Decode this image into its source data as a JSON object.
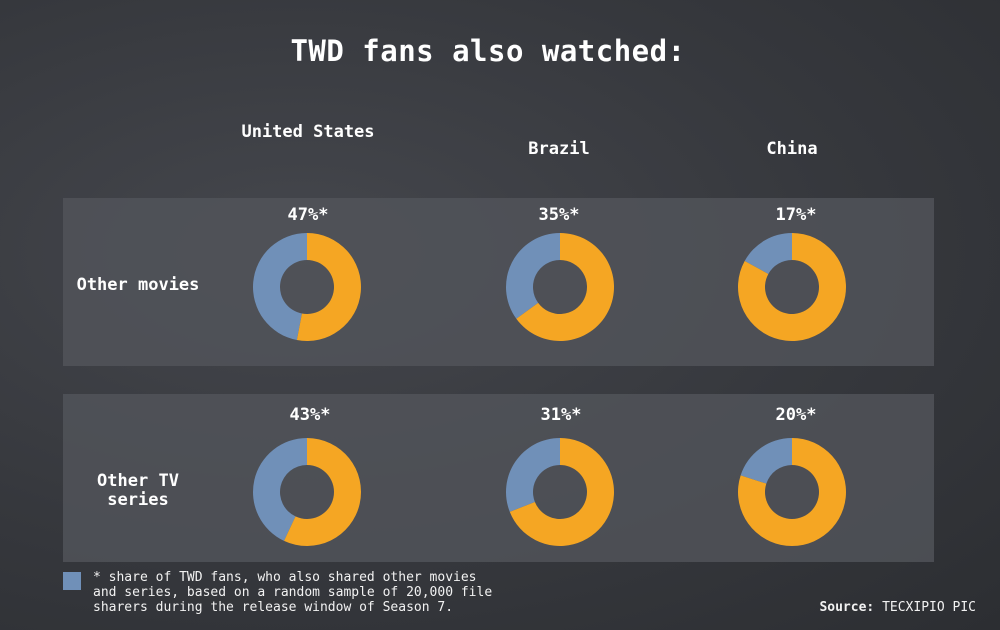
{
  "title": "TWD fans also watched:",
  "columns": [
    "United States",
    "Brazil",
    "China"
  ],
  "rows": [
    "Other movies",
    "Other TV series"
  ],
  "footnote": "* share of TWD fans, who also shared other movies\nand series, based on a random sample of 20,000 file\nsharers during the release window of Season 7.",
  "source_label": "Source:",
  "source_value": "TECXIPIO PIC",
  "colors": {
    "share": "#7090b8",
    "rest": "#f5a623"
  },
  "chart_data": {
    "type": "pie",
    "title": "TWD fans also watched:",
    "columns": [
      "United States",
      "Brazil",
      "China"
    ],
    "rows": [
      "Other movies",
      "Other TV series"
    ],
    "unit": "%",
    "values": [
      [
        47,
        35,
        17
      ],
      [
        43,
        31,
        20
      ]
    ],
    "labels": [
      [
        "47%*",
        "35%*",
        "17%*"
      ],
      [
        "43%*",
        "31%*",
        "20%*"
      ]
    ]
  }
}
